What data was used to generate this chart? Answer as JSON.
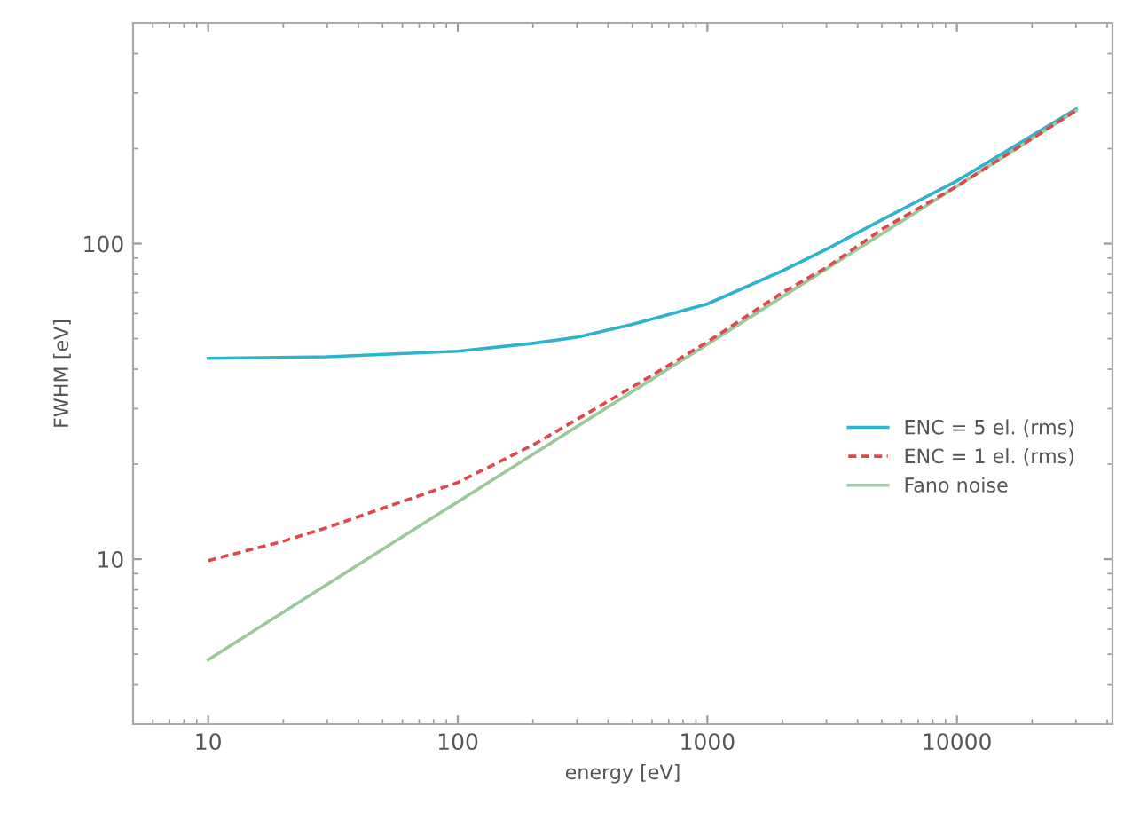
{
  "chart_data": {
    "type": "line",
    "xlabel": "energy [eV]",
    "ylabel": "FWHM [eV]",
    "log": "xy",
    "grid": false,
    "legend": "right",
    "xlim": [
      5,
      42000
    ],
    "xticks": [
      10,
      100,
      1000,
      10000
    ],
    "ylim": [
      3,
      500
    ],
    "yticks": [
      10,
      100
    ],
    "series": [
      {
        "name": "ENC = 5 el. (rms)",
        "color": "#2fb3cc",
        "line_style": "solid",
        "x": [
          10,
          30,
          100,
          200,
          300,
          500,
          1000,
          2000,
          3000,
          5000,
          10000,
          20000,
          30000
        ],
        "values": [
          43.3,
          43.8,
          45.6,
          48.3,
          50.5,
          55.5,
          64.4,
          82,
          96,
          119,
          158,
          220,
          267
        ]
      },
      {
        "name": "ENC = 1 el. (rms)",
        "color": "#e0474c",
        "line_style": "dashed",
        "x": [
          10,
          20,
          30,
          50,
          100,
          200,
          500,
          1000,
          2000,
          3000,
          5000,
          10000,
          30000
        ],
        "values": [
          9.9,
          11.4,
          12.6,
          14.5,
          17.5,
          23,
          35.1,
          48.8,
          70,
          84,
          111,
          152,
          264
        ]
      },
      {
        "name": "Fano noise",
        "color": "#9cc99c",
        "line_style": "solid",
        "x": [
          10,
          100,
          1000,
          10000,
          30000
        ],
        "values": [
          4.8,
          15.2,
          48,
          152,
          264
        ]
      }
    ]
  }
}
